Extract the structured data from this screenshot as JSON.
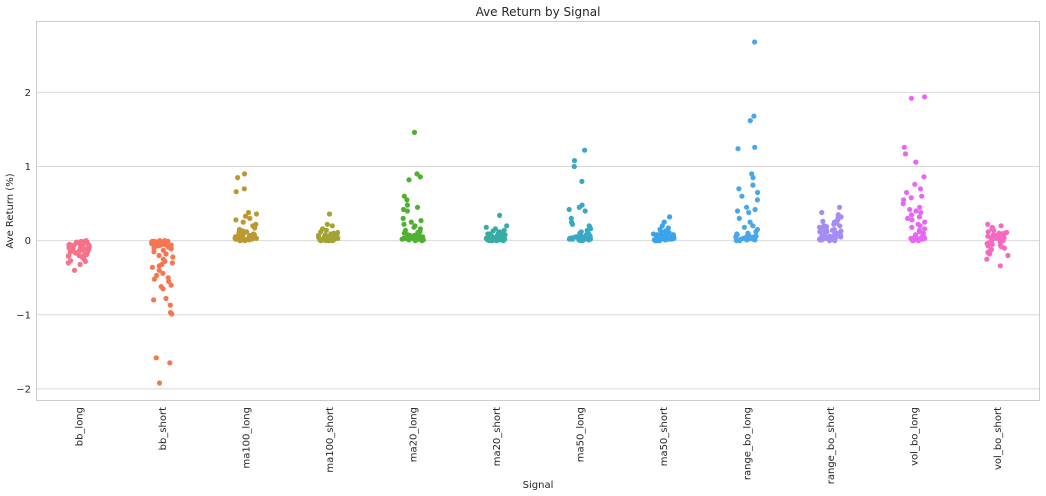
{
  "chart_data": {
    "type": "scatter",
    "subtype": "strip",
    "title": "Ave Return by Signal",
    "xlabel": "Signal",
    "ylabel": "Ave Return (%)",
    "ylim": [
      -2.15,
      2.95
    ],
    "yticks": [
      -2,
      -1,
      0,
      1,
      2
    ],
    "ytick_labels": [
      "−2",
      "−1",
      "0",
      "1",
      "2"
    ],
    "grid": true,
    "legend": "none",
    "categories": [
      "bb_long",
      "bb_short",
      "ma100_long",
      "ma100_short",
      "ma20_long",
      "ma20_short",
      "ma50_long",
      "ma50_short",
      "range_bo_long",
      "range_bo_short",
      "vol_bo_long",
      "vol_bo_short"
    ],
    "series": [
      {
        "name": "bb_long",
        "color": "#f77189",
        "values": [
          -0.4,
          -0.32,
          -0.3,
          -0.28,
          -0.27,
          -0.25,
          -0.24,
          -0.22,
          -0.21,
          -0.2,
          -0.19,
          -0.18,
          -0.17,
          -0.16,
          -0.15,
          -0.14,
          -0.13,
          -0.12,
          -0.11,
          -0.1,
          -0.1,
          -0.09,
          -0.08,
          -0.08,
          -0.07,
          -0.06,
          -0.06,
          -0.05,
          -0.05,
          -0.04,
          -0.04,
          -0.03,
          -0.03,
          -0.02,
          -0.02,
          -0.02,
          -0.01,
          -0.01,
          -0.01,
          0.0,
          -0.15,
          -0.2,
          -0.12,
          -0.06,
          -0.03
        ]
      },
      {
        "name": "bb_short",
        "color": "#f7754f",
        "values": [
          -1.92,
          -1.65,
          -1.58,
          -0.99,
          -0.97,
          -0.87,
          -0.8,
          -0.78,
          -0.65,
          -0.62,
          -0.6,
          -0.55,
          -0.52,
          -0.5,
          -0.47,
          -0.44,
          -0.4,
          -0.36,
          -0.34,
          -0.32,
          -0.3,
          -0.28,
          -0.25,
          -0.22,
          -0.2,
          -0.18,
          -0.15,
          -0.13,
          -0.11,
          -0.1,
          -0.09,
          -0.08,
          -0.07,
          -0.06,
          -0.05,
          -0.05,
          -0.04,
          -0.04,
          -0.03,
          -0.03,
          -0.02,
          -0.02,
          -0.02,
          -0.01,
          -0.01,
          -0.01,
          0.0,
          0.0,
          -0.06,
          -0.03,
          -0.04,
          -0.02,
          -0.08
        ]
      },
      {
        "name": "ma100_long",
        "color": "#bb9832",
        "values": [
          0.9,
          0.85,
          0.7,
          0.66,
          0.38,
          0.36,
          0.33,
          0.3,
          0.28,
          0.25,
          0.22,
          0.2,
          0.17,
          0.15,
          0.13,
          0.12,
          0.11,
          0.1,
          0.09,
          0.08,
          0.07,
          0.06,
          0.06,
          0.05,
          0.05,
          0.04,
          0.04,
          0.03,
          0.03,
          0.03,
          0.02,
          0.02,
          0.02,
          0.01,
          0.01,
          0.01,
          0.0,
          0.0,
          0.04,
          0.02,
          0.06,
          0.03,
          0.01,
          0.08,
          0.05
        ]
      },
      {
        "name": "ma100_short",
        "color": "#a3a333",
        "values": [
          0.36,
          0.22,
          0.2,
          0.16,
          0.14,
          0.12,
          0.11,
          0.1,
          0.09,
          0.08,
          0.07,
          0.07,
          0.06,
          0.06,
          0.05,
          0.05,
          0.04,
          0.04,
          0.03,
          0.03,
          0.03,
          0.02,
          0.02,
          0.02,
          0.01,
          0.01,
          0.01,
          0.0,
          0.0,
          0.0,
          0.05,
          0.03,
          0.02,
          0.04,
          0.01,
          0.06,
          0.02,
          0.03,
          0.01,
          0.0
        ]
      },
      {
        "name": "ma20_long",
        "color": "#50b131",
        "values": [
          1.46,
          0.9,
          0.86,
          0.82,
          0.6,
          0.55,
          0.48,
          0.45,
          0.42,
          0.4,
          0.3,
          0.27,
          0.25,
          0.22,
          0.2,
          0.18,
          0.16,
          0.14,
          0.12,
          0.11,
          0.1,
          0.09,
          0.08,
          0.07,
          0.07,
          0.06,
          0.06,
          0.05,
          0.05,
          0.04,
          0.04,
          0.03,
          0.03,
          0.03,
          0.02,
          0.02,
          0.02,
          0.01,
          0.01,
          0.01,
          0.0,
          0.0,
          0.05,
          0.03,
          0.02,
          0.04,
          0.01,
          0.06,
          0.02,
          0.03
        ]
      },
      {
        "name": "ma20_short",
        "color": "#36ada4",
        "values": [
          0.34,
          0.2,
          0.18,
          0.16,
          0.14,
          0.13,
          0.12,
          0.11,
          0.1,
          0.09,
          0.09,
          0.08,
          0.08,
          0.07,
          0.07,
          0.06,
          0.06,
          0.05,
          0.05,
          0.05,
          0.04,
          0.04,
          0.04,
          0.03,
          0.03,
          0.03,
          0.02,
          0.02,
          0.02,
          0.01,
          0.01,
          0.01,
          0.0,
          0.0,
          0.0,
          0.05,
          0.03,
          0.02,
          0.04,
          0.01,
          0.06,
          0.02,
          0.03,
          0.01,
          0.0,
          0.04,
          0.02,
          0.03
        ]
      },
      {
        "name": "ma50_long",
        "color": "#38a9c5",
        "values": [
          1.22,
          1.08,
          1.0,
          0.8,
          0.48,
          0.45,
          0.42,
          0.4,
          0.3,
          0.25,
          0.22,
          0.2,
          0.18,
          0.16,
          0.14,
          0.12,
          0.1,
          0.09,
          0.08,
          0.07,
          0.06,
          0.06,
          0.05,
          0.05,
          0.04,
          0.04,
          0.03,
          0.03,
          0.02,
          0.02,
          0.02,
          0.01,
          0.01,
          0.0,
          0.0,
          0.05,
          0.03,
          0.02,
          0.04,
          0.01,
          0.06,
          0.02,
          0.03
        ]
      },
      {
        "name": "ma50_short",
        "color": "#3ba3ec",
        "values": [
          0.32,
          0.25,
          0.2,
          0.17,
          0.15,
          0.13,
          0.12,
          0.11,
          0.1,
          0.09,
          0.08,
          0.08,
          0.07,
          0.07,
          0.06,
          0.06,
          0.05,
          0.05,
          0.04,
          0.04,
          0.04,
          0.03,
          0.03,
          0.03,
          0.02,
          0.02,
          0.02,
          0.01,
          0.01,
          0.01,
          0.0,
          0.0,
          0.0,
          0.05,
          0.03,
          0.02,
          0.04,
          0.01,
          0.06,
          0.02
        ]
      },
      {
        "name": "range_bo_long",
        "color": "#49a6ea",
        "values": [
          2.68,
          1.68,
          1.62,
          1.26,
          1.24,
          0.9,
          0.85,
          0.75,
          0.7,
          0.65,
          0.6,
          0.55,
          0.45,
          0.42,
          0.4,
          0.38,
          0.3,
          0.25,
          0.2,
          0.18,
          0.15,
          0.12,
          0.1,
          0.09,
          0.08,
          0.07,
          0.06,
          0.05,
          0.05,
          0.04,
          0.04,
          0.03,
          0.03,
          0.02,
          0.02,
          0.01,
          0.01,
          0.0,
          0.0,
          0.05,
          0.03,
          0.02,
          0.04,
          0.01,
          0.06
        ]
      },
      {
        "name": "range_bo_short",
        "color": "#a48cf4",
        "values": [
          0.45,
          0.38,
          0.35,
          0.32,
          0.3,
          0.28,
          0.26,
          0.24,
          0.22,
          0.2,
          0.19,
          0.18,
          0.17,
          0.16,
          0.15,
          0.14,
          0.13,
          0.12,
          0.11,
          0.1,
          0.09,
          0.08,
          0.07,
          0.07,
          0.06,
          0.06,
          0.05,
          0.05,
          0.04,
          0.04,
          0.03,
          0.03,
          0.02,
          0.02,
          0.01,
          0.01,
          0.0,
          0.0,
          0.05,
          0.03,
          0.02,
          0.04,
          0.01,
          0.06,
          0.02,
          0.03,
          0.15,
          0.2,
          0.12,
          0.25
        ]
      },
      {
        "name": "vol_bo_long",
        "color": "#e866f4",
        "values": [
          1.94,
          1.92,
          1.26,
          1.17,
          1.06,
          0.86,
          0.76,
          0.7,
          0.65,
          0.6,
          0.58,
          0.55,
          0.5,
          0.45,
          0.42,
          0.4,
          0.38,
          0.35,
          0.32,
          0.3,
          0.28,
          0.25,
          0.22,
          0.2,
          0.18,
          0.16,
          0.14,
          0.12,
          0.1,
          0.08,
          0.07,
          0.06,
          0.05,
          0.04,
          0.04,
          0.03,
          0.03,
          0.02,
          0.02,
          0.01,
          0.01,
          0.0,
          0.0,
          0.05,
          0.03
        ]
      },
      {
        "name": "vol_bo_short",
        "color": "#f668c2",
        "values": [
          0.22,
          0.2,
          0.18,
          0.16,
          0.14,
          0.12,
          0.11,
          0.1,
          0.09,
          0.08,
          0.07,
          0.06,
          0.05,
          0.04,
          0.03,
          0.02,
          0.01,
          0.0,
          -0.01,
          -0.02,
          -0.03,
          -0.04,
          -0.05,
          -0.06,
          -0.07,
          -0.08,
          -0.1,
          -0.12,
          -0.14,
          -0.16,
          -0.18,
          -0.2,
          -0.25,
          -0.34,
          0.05,
          0.02,
          -0.03,
          0.08,
          0.1,
          0.04
        ]
      }
    ]
  }
}
